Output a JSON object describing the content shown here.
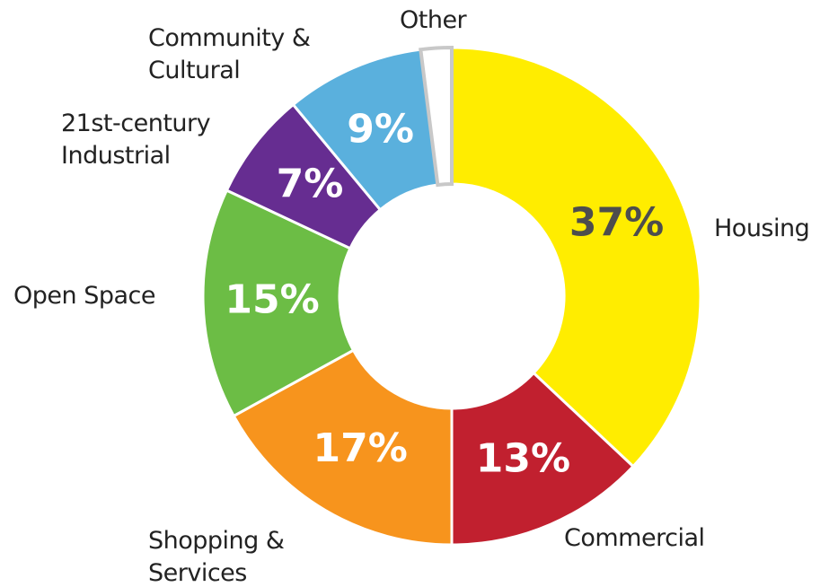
{
  "chart_data": {
    "type": "donut",
    "categories": [
      "Housing",
      "Commercial",
      "Shopping & Services",
      "Open Space",
      "21st-century Industrial",
      "Community & Cultural",
      "Other"
    ],
    "values": [
      37,
      13,
      17,
      15,
      7,
      9,
      2
    ],
    "value_labels": [
      "37%",
      "13%",
      "17%",
      "15%",
      "7%",
      "9%",
      null
    ],
    "colors": [
      "#ffed00",
      "#c1202f",
      "#f7941d",
      "#6cbd45",
      "#662d91",
      "#5ab0dd",
      "#ffffff"
    ]
  }
}
